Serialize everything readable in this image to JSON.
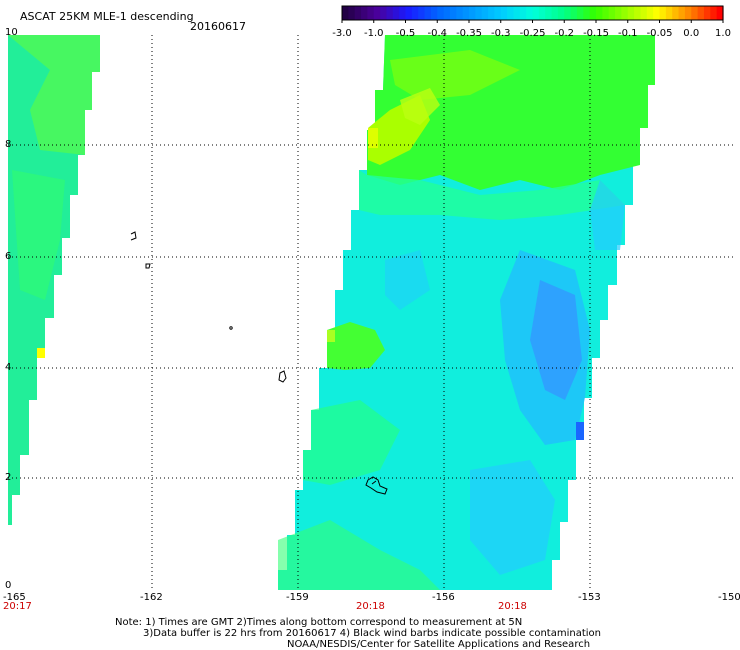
{
  "header": {
    "title": "ASCAT 25KM MLE-1 descending",
    "date": "20160617"
  },
  "colorbar": {
    "labels": [
      "-3.0",
      "-1.0",
      "-0.5",
      "-0.4",
      "-0.35",
      "-0.3",
      "-0.25",
      "-0.2",
      "-0.15",
      "-0.1",
      "-0.05",
      "0.0",
      "1.0"
    ],
    "colors": [
      "#220044",
      "#4b0099",
      "#1a1aff",
      "#0066ff",
      "#0099ff",
      "#00ccff",
      "#00ffdd",
      "#00ff88",
      "#33ff00",
      "#99ff00",
      "#ffff00",
      "#ff8800",
      "#ff0000"
    ]
  },
  "axes": {
    "y_ticks": [
      "10",
      "8",
      "6",
      "4",
      "2",
      "0"
    ],
    "x_ticks": [
      "-165",
      "-162",
      "-159",
      "-156",
      "-153",
      "-150"
    ],
    "times": [
      "20:17",
      "20:18",
      "20:18"
    ]
  },
  "notes": [
    "Note: 1) Times are GMT 2)Times along bottom correspond to measurement at 5N",
    "3)Data buffer is 22 hrs from 20160617 4) Black wind barbs indicate possible contamination",
    "NOAA/NESDIS/Center for Satellite Applications and Research"
  ]
}
